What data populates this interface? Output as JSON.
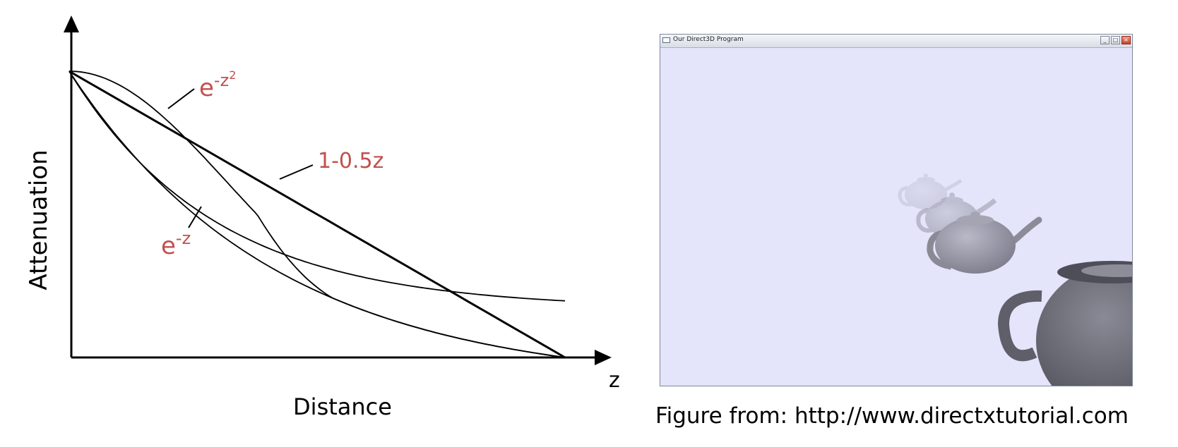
{
  "diagram": {
    "y_axis_label": "Attenuation",
    "x_axis_label": "Distance",
    "x_axis_symbol": "z",
    "curves": [
      {
        "name": "gaussian",
        "base": "e",
        "exponent": "-z",
        "superscript": "2"
      },
      {
        "name": "linear",
        "label": "1-0.5z"
      },
      {
        "name": "exponential",
        "base": "e",
        "exponent": "-z"
      }
    ],
    "label_color": "#c0504d"
  },
  "window": {
    "title": "Our Direct3D Program",
    "minimize_glyph": "_",
    "maximize_glyph": "□",
    "close_glyph": "×",
    "background_color": "#e4e4fb"
  },
  "caption": "Figure from: http://www.directxtutorial.com"
}
